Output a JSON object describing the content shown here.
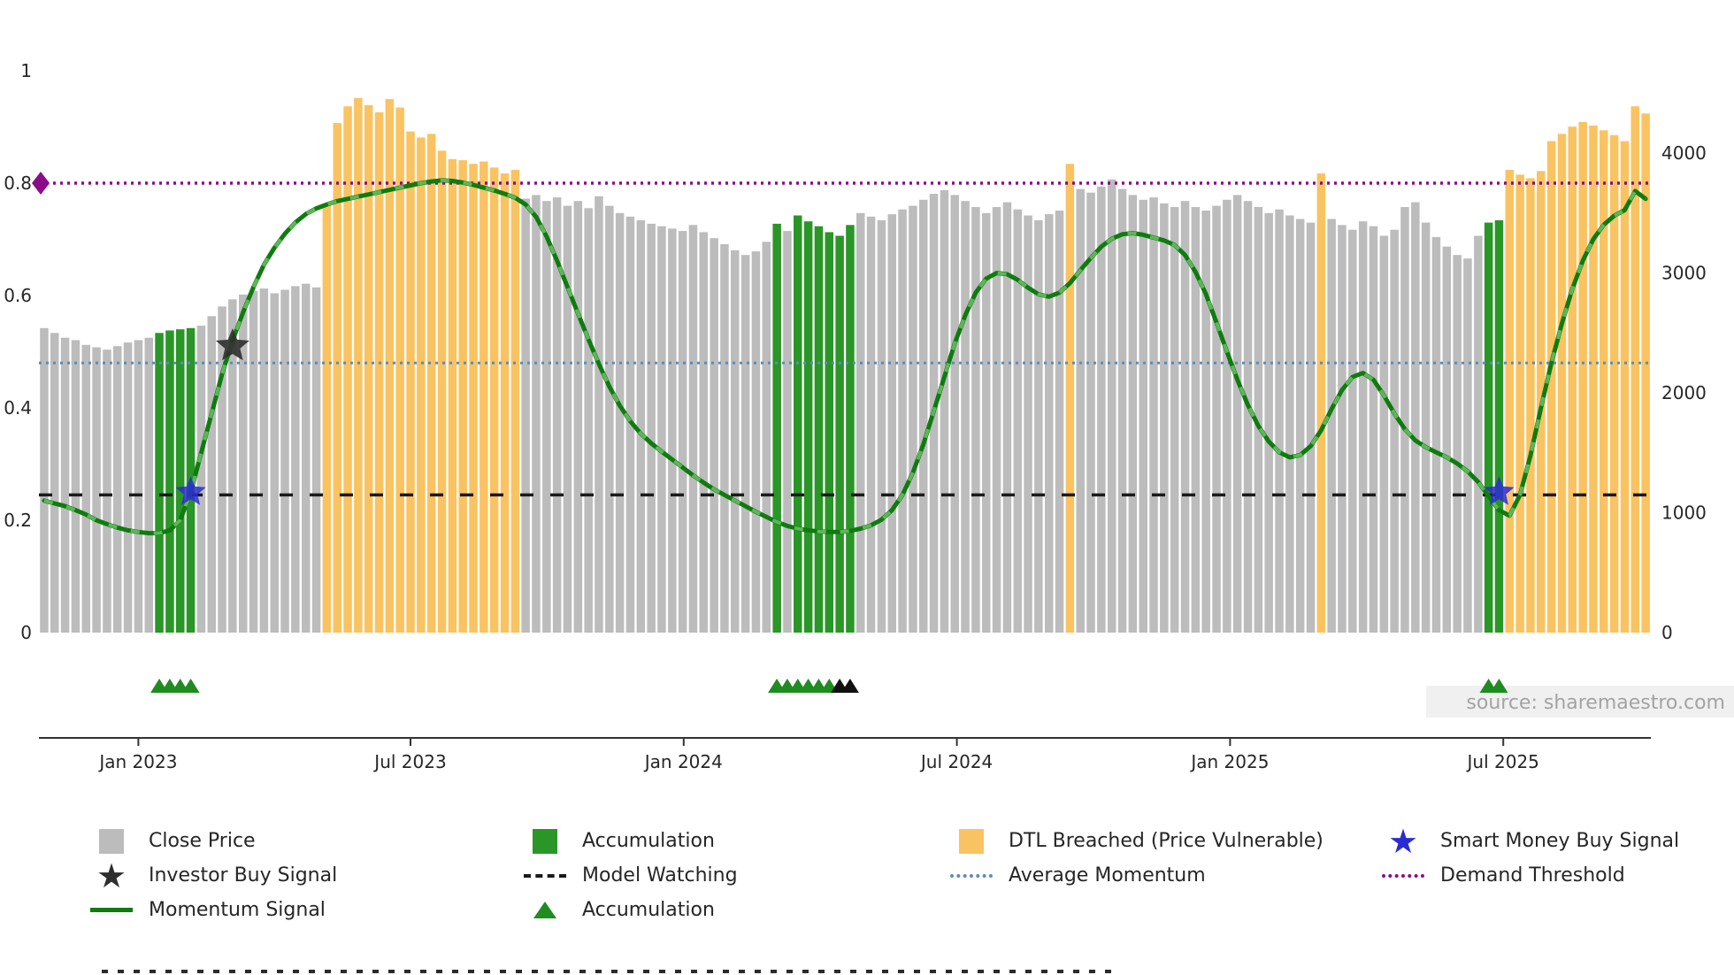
{
  "source_note": "source: sharemaestro.com",
  "colors": {
    "close_price": "#bcbcbc",
    "accumulation": "#2a9627",
    "dtl_breached": "#fac361",
    "momentum_line": "#0e7c0e",
    "momentum_dash": "#5fb65a",
    "average_momentum": "#5b8db8",
    "demand_threshold": "#8b0b8b",
    "model_watching": "#1a1a1a",
    "smart_money_star": "#2b2bd4",
    "investor_star": "#2e2e2e",
    "triangle_green": "#1f8c1f",
    "triangle_black": "#111111",
    "axis_text": "#262626",
    "source_text": "#a3a3a3",
    "source_bg": "#f0f0f0",
    "spine": "#333333"
  },
  "chart_data": {
    "type": "bar",
    "overlay": "line",
    "x_axis": {
      "ticks": [
        {
          "index": 9,
          "label": "Jan 2023"
        },
        {
          "index": 35,
          "label": "Jul 2023"
        },
        {
          "index": 61.1,
          "label": "Jan 2024"
        },
        {
          "index": 87.2,
          "label": "Jul 2024"
        },
        {
          "index": 113.3,
          "label": "Jan 2025"
        },
        {
          "index": 139.4,
          "label": "Jul 2025"
        }
      ]
    },
    "left_axis": {
      "range": [
        0,
        1
      ],
      "ticks": [
        {
          "v": 0,
          "label": "0"
        },
        {
          "v": 0.2,
          "label": "0.2"
        },
        {
          "v": 0.4,
          "label": "0.4"
        },
        {
          "v": 0.6,
          "label": "0.6"
        },
        {
          "v": 0.8,
          "label": "0.8"
        },
        {
          "v": 1,
          "label": "1"
        }
      ]
    },
    "right_axis": {
      "ticks": [
        {
          "v": 0,
          "label": "0"
        },
        {
          "v": 1000,
          "label": "1000"
        },
        {
          "v": 2000,
          "label": "2000"
        },
        {
          "v": 3000,
          "label": "3000"
        },
        {
          "v": 4000,
          "label": "4000"
        }
      ]
    },
    "bars": {
      "name": "Close Price (weekly)",
      "values": [
        2540,
        2500,
        2460,
        2440,
        2400,
        2380,
        2360,
        2390,
        2420,
        2440,
        2460,
        2500,
        2520,
        2530,
        2540,
        2560,
        2640,
        2720,
        2780,
        2820,
        2850,
        2870,
        2830,
        2860,
        2890,
        2910,
        2880,
        3570,
        4250,
        4390,
        4460,
        4400,
        4340,
        4450,
        4380,
        4180,
        4130,
        4160,
        4020,
        3950,
        3940,
        3910,
        3930,
        3880,
        3830,
        3860,
        3620,
        3650,
        3600,
        3630,
        3560,
        3600,
        3540,
        3640,
        3560,
        3500,
        3470,
        3440,
        3410,
        3390,
        3370,
        3350,
        3400,
        3340,
        3290,
        3240,
        3190,
        3150,
        3180,
        3260,
        3410,
        3350,
        3480,
        3430,
        3390,
        3340,
        3310,
        3400,
        3500,
        3470,
        3440,
        3490,
        3530,
        3560,
        3610,
        3660,
        3690,
        3650,
        3600,
        3550,
        3500,
        3550,
        3590,
        3530,
        3480,
        3440,
        3490,
        3520,
        3910,
        3700,
        3670,
        3720,
        3780,
        3700,
        3650,
        3610,
        3630,
        3580,
        3550,
        3600,
        3550,
        3520,
        3560,
        3610,
        3650,
        3600,
        3550,
        3500,
        3530,
        3480,
        3450,
        3420,
        3830,
        3450,
        3400,
        3360,
        3430,
        3390,
        3310,
        3360,
        3550,
        3590,
        3420,
        3300,
        3220,
        3150,
        3120,
        3310,
        3420,
        3440,
        3860,
        3820,
        3790,
        3850,
        4100,
        4160,
        4220,
        4260,
        4230,
        4190,
        4150,
        4100,
        4390,
        4330
      ],
      "regions": [
        {
          "from": 0,
          "to": 10,
          "type": "close"
        },
        {
          "from": 11,
          "to": 14,
          "type": "accumulation"
        },
        {
          "from": 15,
          "to": 26,
          "type": "close"
        },
        {
          "from": 27,
          "to": 45,
          "type": "dtl"
        },
        {
          "from": 46,
          "to": 69,
          "type": "close"
        },
        {
          "from": 70,
          "to": 70,
          "type": "accumulation"
        },
        {
          "from": 71,
          "to": 71,
          "type": "close"
        },
        {
          "from": 72,
          "to": 77,
          "type": "accumulation"
        },
        {
          "from": 78,
          "to": 97,
          "type": "close"
        },
        {
          "from": 98,
          "to": 98,
          "type": "dtl"
        },
        {
          "from": 99,
          "to": 121,
          "type": "close"
        },
        {
          "from": 122,
          "to": 122,
          "type": "dtl"
        },
        {
          "from": 123,
          "to": 137,
          "type": "close"
        },
        {
          "from": 138,
          "to": 139,
          "type": "accumulation"
        },
        {
          "from": 140,
          "to": 153,
          "type": "dtl"
        }
      ]
    },
    "momentum_line": {
      "name": "Momentum Signal",
      "values": [
        0.235,
        0.23,
        0.225,
        0.218,
        0.21,
        0.2,
        0.193,
        0.187,
        0.182,
        0.179,
        0.177,
        0.177,
        0.182,
        0.2,
        0.25,
        0.32,
        0.39,
        0.46,
        0.52,
        0.57,
        0.615,
        0.655,
        0.685,
        0.71,
        0.73,
        0.745,
        0.755,
        0.762,
        0.768,
        0.772,
        0.776,
        0.78,
        0.784,
        0.788,
        0.792,
        0.796,
        0.8,
        0.803,
        0.805,
        0.804,
        0.801,
        0.797,
        0.792,
        0.787,
        0.781,
        0.774,
        0.762,
        0.74,
        0.705,
        0.662,
        0.615,
        0.568,
        0.522,
        0.478,
        0.438,
        0.404,
        0.376,
        0.354,
        0.337,
        0.322,
        0.308,
        0.294,
        0.28,
        0.267,
        0.255,
        0.245,
        0.235,
        0.225,
        0.215,
        0.206,
        0.197,
        0.19,
        0.185,
        0.182,
        0.18,
        0.179,
        0.179,
        0.181,
        0.185,
        0.191,
        0.201,
        0.218,
        0.245,
        0.285,
        0.335,
        0.395,
        0.455,
        0.515,
        0.565,
        0.605,
        0.63,
        0.64,
        0.638,
        0.628,
        0.614,
        0.602,
        0.598,
        0.605,
        0.622,
        0.645,
        0.667,
        0.687,
        0.701,
        0.709,
        0.711,
        0.708,
        0.703,
        0.698,
        0.69,
        0.672,
        0.642,
        0.602,
        0.552,
        0.5,
        0.45,
        0.405,
        0.368,
        0.34,
        0.321,
        0.312,
        0.316,
        0.332,
        0.36,
        0.398,
        0.432,
        0.455,
        0.462,
        0.45,
        0.422,
        0.39,
        0.362,
        0.342,
        0.33,
        0.321,
        0.312,
        0.301,
        0.287,
        0.268,
        0.243,
        0.218,
        0.208,
        0.245,
        0.315,
        0.4,
        0.48,
        0.55,
        0.612,
        0.662,
        0.7,
        0.726,
        0.742,
        0.752,
        0.786,
        0.772
      ]
    },
    "threshold_lines": {
      "demand_threshold": 0.8,
      "average_momentum": 0.48,
      "model_watching": 0.245
    },
    "markers": {
      "investor_buy_signals": [
        {
          "index": 18,
          "momentum": 0.51
        }
      ],
      "smart_money_buy_signals": [
        {
          "index": 14,
          "momentum": 0.25
        },
        {
          "index": 139,
          "momentum": 0.25
        }
      ],
      "accumulation_triangle_indices": [
        11,
        12,
        13,
        14,
        70,
        71,
        72,
        73,
        74,
        75,
        138,
        139
      ],
      "black_triangle_indices": [
        76,
        77
      ],
      "demand_threshold_start_marker": {
        "momentum": 0.8,
        "shape": "diamond"
      }
    }
  },
  "legend": {
    "columns": [
      {
        "items": [
          {
            "icon": "swatch",
            "color_key": "close_price",
            "label": "Close Price"
          },
          {
            "icon": "star",
            "color_key": "investor_star",
            "label": "Investor Buy Signal"
          },
          {
            "icon": "line-solid",
            "color_key": "momentum_line",
            "label": "Momentum Signal"
          }
        ]
      },
      {
        "items": [
          {
            "icon": "swatch",
            "color_key": "accumulation",
            "label": "Accumulation"
          },
          {
            "icon": "line-dashed",
            "color_key": "model_watching",
            "label": "Model Watching"
          },
          {
            "icon": "triangle",
            "color_key": "triangle_green",
            "label": "Accumulation"
          }
        ]
      },
      {
        "items": [
          {
            "icon": "swatch",
            "color_key": "dtl_breached",
            "label": "DTL Breached (Price Vulnerable)"
          },
          {
            "icon": "line-dotted",
            "color_key": "average_momentum",
            "label": "Average Momentum"
          }
        ]
      },
      {
        "items": [
          {
            "icon": "star",
            "color_key": "smart_money_star",
            "label": "Smart Money Buy Signal"
          },
          {
            "icon": "line-dotted",
            "color_key": "demand_threshold",
            "label": "Demand Threshold"
          }
        ]
      }
    ]
  }
}
